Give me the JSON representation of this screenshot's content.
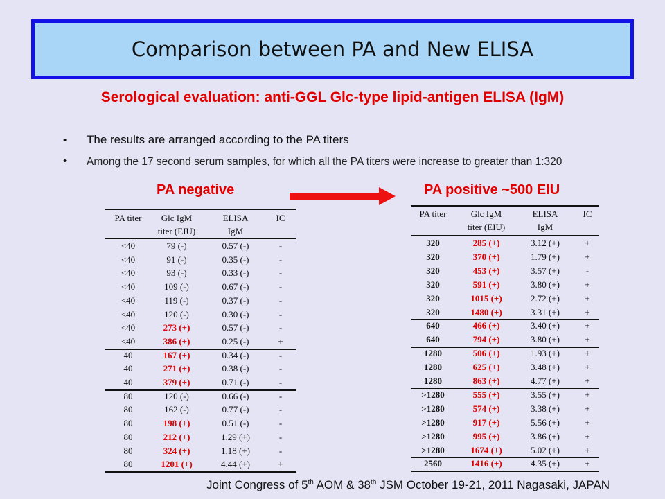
{
  "title": "Comparison between PA and New ELISA",
  "subtitle": "Serological evaluation: anti-GGL Glc-type lipid-antigen ELISA (IgM)",
  "bullets": [
    "The results are arranged according to the PA titers",
    "Among the 17 second serum samples, for which all the PA titers were increase to greater than 1:320"
  ],
  "left_label": "PA negative",
  "right_label": "PA positive ~500 EIU",
  "left_table": {
    "columns": [
      [
        "PA titer"
      ],
      [
        "Glc IgM",
        "titer (EIU)"
      ],
      [
        "ELISA",
        "IgM"
      ],
      [
        "IC"
      ]
    ],
    "groups": [
      [
        [
          "<40",
          "79 (-)",
          "0.57 (-)",
          "-"
        ],
        [
          "<40",
          "91 (-)",
          "0.35 (-)",
          "-"
        ],
        [
          "<40",
          "93 (-)",
          "0.33 (-)",
          "-"
        ],
        [
          "<40",
          "109 (-)",
          "0.67 (-)",
          "-"
        ],
        [
          "<40",
          "119 (-)",
          "0.37 (-)",
          "-"
        ],
        [
          "<40",
          "120 (-)",
          "0.30 (-)",
          "-"
        ],
        [
          "<40",
          "273 (+)",
          "0.57 (-)",
          "-"
        ],
        [
          "<40",
          "386 (+)",
          "0.25 (-)",
          "+"
        ]
      ],
      [
        [
          "40",
          "167 (+)",
          "0.34 (-)",
          "-"
        ],
        [
          "40",
          "271 (+)",
          "0.38 (-)",
          "-"
        ],
        [
          "40",
          "379 (+)",
          "0.71 (-)",
          "-"
        ]
      ],
      [
        [
          "80",
          "120 (-)",
          "0.66 (-)",
          "-"
        ],
        [
          "80",
          "162 (-)",
          "0.77 (-)",
          "-"
        ],
        [
          "80",
          "198 (+)",
          "0.51 (-)",
          "-"
        ],
        [
          "80",
          "212 (+)",
          "1.29 (+)",
          "-"
        ],
        [
          "80",
          "324 (+)",
          "1.18 (+)",
          "-"
        ],
        [
          "80",
          "1201 (+)",
          "4.44 (+)",
          "+"
        ]
      ]
    ]
  },
  "right_table": {
    "columns": [
      [
        "PA titer"
      ],
      [
        "Glc IgM",
        "titer (EIU)"
      ],
      [
        "ELISA",
        "IgM"
      ],
      [
        "IC"
      ]
    ],
    "groups": [
      [
        [
          "320",
          "285 (+)",
          "3.12 (+)",
          "+"
        ],
        [
          "320",
          "370 (+)",
          "1.79 (+)",
          "+"
        ],
        [
          "320",
          "453 (+)",
          "3.57 (+)",
          "-"
        ],
        [
          "320",
          "591 (+)",
          "3.80 (+)",
          "+"
        ],
        [
          "320",
          "1015 (+)",
          "2.72 (+)",
          "+"
        ],
        [
          "320",
          "1480 (+)",
          "3.31 (+)",
          "+"
        ]
      ],
      [
        [
          "640",
          "466 (+)",
          "3.40 (+)",
          "+"
        ],
        [
          "640",
          "794 (+)",
          "3.80 (+)",
          "+"
        ]
      ],
      [
        [
          "1280",
          "506 (+)",
          "1.93 (+)",
          "+"
        ],
        [
          "1280",
          "625 (+)",
          "3.48 (+)",
          "+"
        ],
        [
          "1280",
          "863 (+)",
          "4.77 (+)",
          "+"
        ]
      ],
      [
        [
          ">1280",
          "555 (+)",
          "3.55 (+)",
          "+"
        ],
        [
          ">1280",
          "574 (+)",
          "3.38 (+)",
          "+"
        ],
        [
          ">1280",
          "917 (+)",
          "5.56 (+)",
          "+"
        ],
        [
          ">1280",
          "995 (+)",
          "3.86 (+)",
          "+"
        ],
        [
          ">1280",
          "1674 (+)",
          "5.02 (+)",
          "+"
        ]
      ],
      [
        [
          "2560",
          "1416 (+)",
          "4.35 (+)",
          "+"
        ]
      ]
    ]
  },
  "footer": [
    "Joint Congress of 5",
    "th",
    " AOM & 38",
    "th",
    " JSM October 19-21, 2011 Nagasaki, JAPAN"
  ]
}
